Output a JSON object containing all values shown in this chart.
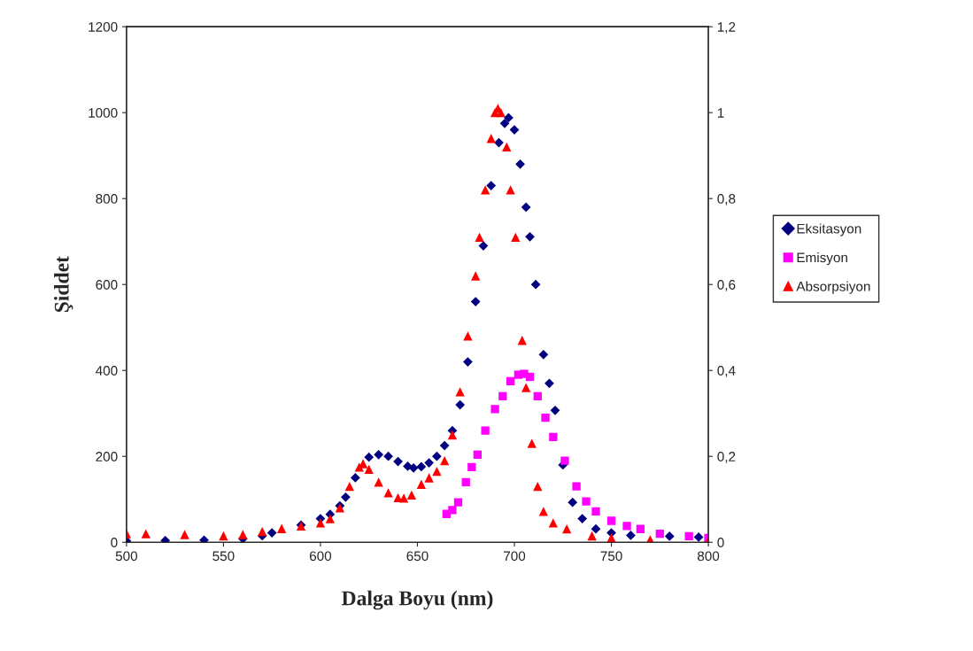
{
  "chart_data": {
    "type": "scatter",
    "xlabel": "Dalga Boyu (nm)",
    "ylabel": "Şiddet",
    "xlim": [
      500,
      800
    ],
    "xticks": [
      500,
      550,
      600,
      650,
      700,
      750,
      800
    ],
    "ylim": [
      0,
      1200
    ],
    "yticks": [
      0,
      200,
      400,
      600,
      800,
      1000,
      1200
    ],
    "y2lim": [
      0,
      1.2
    ],
    "y2ticks": [
      0,
      {
        "value": 0.2,
        "label": "0,2"
      },
      {
        "value": 0.4,
        "label": "0,4"
      },
      {
        "value": 0.6,
        "label": "0,6"
      },
      {
        "value": 0.8,
        "label": "0,8"
      },
      1,
      {
        "value": 1.2,
        "label": "1,2"
      }
    ],
    "grid": false,
    "legend": "right",
    "series": [
      {
        "name": "Eksitasyon",
        "color": "#000080",
        "marker": "diamond",
        "x": [
          500,
          520,
          540,
          560,
          570,
          575,
          590,
          600,
          605,
          610,
          613,
          618,
          625,
          630,
          635,
          640,
          645,
          648,
          652,
          656,
          660,
          664,
          668,
          672,
          676,
          680,
          684,
          688,
          692,
          695,
          697,
          700,
          703,
          706,
          708,
          711,
          715,
          718,
          721,
          725,
          730,
          735,
          742,
          750,
          760,
          780,
          795
        ],
        "values": [
          3,
          4,
          5,
          8,
          15,
          22,
          40,
          55,
          65,
          85,
          105,
          150,
          198,
          204,
          200,
          188,
          177,
          173,
          176,
          185,
          200,
          225,
          260,
          320,
          420,
          560,
          690,
          830,
          930,
          975,
          988,
          960,
          880,
          780,
          711,
          600,
          437,
          370,
          307,
          180,
          93,
          55,
          31,
          22,
          16,
          14,
          12
        ]
      },
      {
        "name": "Emisyon",
        "color": "#ff00ff",
        "marker": "square",
        "x": [
          665,
          668,
          671,
          675,
          678,
          681,
          685,
          690,
          694,
          698,
          702,
          705,
          708,
          712,
          716,
          720,
          726,
          732,
          737,
          742,
          750,
          758,
          765,
          775,
          790,
          800
        ],
        "values": [
          66,
          75,
          93,
          140,
          175,
          204,
          260,
          310,
          340,
          375,
          390,
          392,
          385,
          340,
          290,
          245,
          190,
          130,
          95,
          72,
          50,
          38,
          31,
          20,
          14,
          10
        ]
      },
      {
        "name": "Absorpsiyon",
        "color": "#ff0000",
        "marker": "triangle",
        "axis": "y2",
        "x": [
          500,
          510,
          530,
          550,
          560,
          570,
          580,
          590,
          600,
          605,
          610,
          615,
          620,
          622,
          625,
          630,
          635,
          640,
          643,
          647,
          652,
          656,
          660,
          664,
          668,
          672,
          676,
          680,
          682,
          685,
          688,
          690,
          691.5,
          693,
          696,
          698,
          700.6,
          704,
          706,
          709,
          712,
          715,
          720,
          727,
          740,
          750,
          770,
          800
        ],
        "values": [
          0.02,
          0.02,
          0.018,
          0.015,
          0.018,
          0.025,
          0.032,
          0.038,
          0.045,
          0.055,
          0.08,
          0.13,
          0.175,
          0.183,
          0.17,
          0.14,
          0.115,
          0.104,
          0.103,
          0.11,
          0.135,
          0.15,
          0.165,
          0.19,
          0.25,
          0.35,
          0.48,
          0.62,
          0.71,
          0.82,
          0.94,
          1.0,
          1.01,
          1.0,
          0.92,
          0.82,
          0.71,
          0.47,
          0.36,
          0.23,
          0.13,
          0.072,
          0.045,
          0.031,
          0.015,
          0.01,
          0.006,
          0.003
        ]
      }
    ]
  }
}
